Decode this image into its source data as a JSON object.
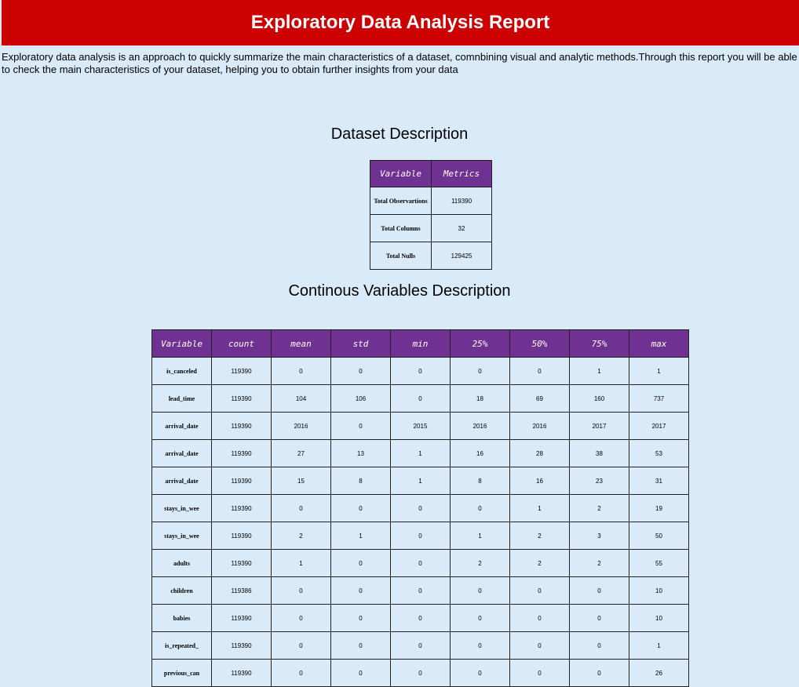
{
  "header": {
    "title": "Exploratory Data Analysis Report"
  },
  "intro": "Exploratory data analysis is an approach to quickly summarize the main characteristics of a dataset, comnbining visual and analytic methods.Through this report you will be able to check the main characteristics of your dataset, helping you to obtain further insights from your data",
  "dataset": {
    "title": "Dataset Description",
    "columns": [
      "Variable",
      "Metrics"
    ],
    "rows": [
      [
        "Total Observartions",
        "119390"
      ],
      [
        "Total Columns",
        "32"
      ],
      [
        "Total Nulls",
        "129425"
      ]
    ]
  },
  "continuous": {
    "title": "Continous Variables Description",
    "columns": [
      "Variable",
      "count",
      "mean",
      "std",
      "min",
      "25%",
      "50%",
      "75%",
      "max"
    ],
    "rows": [
      [
        "is_canceled",
        "119390",
        "0",
        "0",
        "0",
        "0",
        "0",
        "1",
        "1"
      ],
      [
        "lead_time",
        "119390",
        "104",
        "106",
        "0",
        "18",
        "69",
        "160",
        "737"
      ],
      [
        "arrival_date",
        "119390",
        "2016",
        "0",
        "2015",
        "2016",
        "2016",
        "2017",
        "2017"
      ],
      [
        "arrival_date",
        "119390",
        "27",
        "13",
        "1",
        "16",
        "28",
        "38",
        "53"
      ],
      [
        "arrival_date",
        "119390",
        "15",
        "8",
        "1",
        "8",
        "16",
        "23",
        "31"
      ],
      [
        "stays_in_wee",
        "119390",
        "0",
        "0",
        "0",
        "0",
        "1",
        "2",
        "19"
      ],
      [
        "stays_in_wee",
        "119390",
        "2",
        "1",
        "0",
        "1",
        "2",
        "3",
        "50"
      ],
      [
        "adults",
        "119390",
        "1",
        "0",
        "0",
        "2",
        "2",
        "2",
        "55"
      ],
      [
        "children",
        "119386",
        "0",
        "0",
        "0",
        "0",
        "0",
        "0",
        "10"
      ],
      [
        "babies",
        "119390",
        "0",
        "0",
        "0",
        "0",
        "0",
        "0",
        "10"
      ],
      [
        "is_repeated_",
        "119390",
        "0",
        "0",
        "0",
        "0",
        "0",
        "0",
        "1"
      ],
      [
        "previous_can",
        "119390",
        "0",
        "0",
        "0",
        "0",
        "0",
        "0",
        "26"
      ]
    ]
  }
}
